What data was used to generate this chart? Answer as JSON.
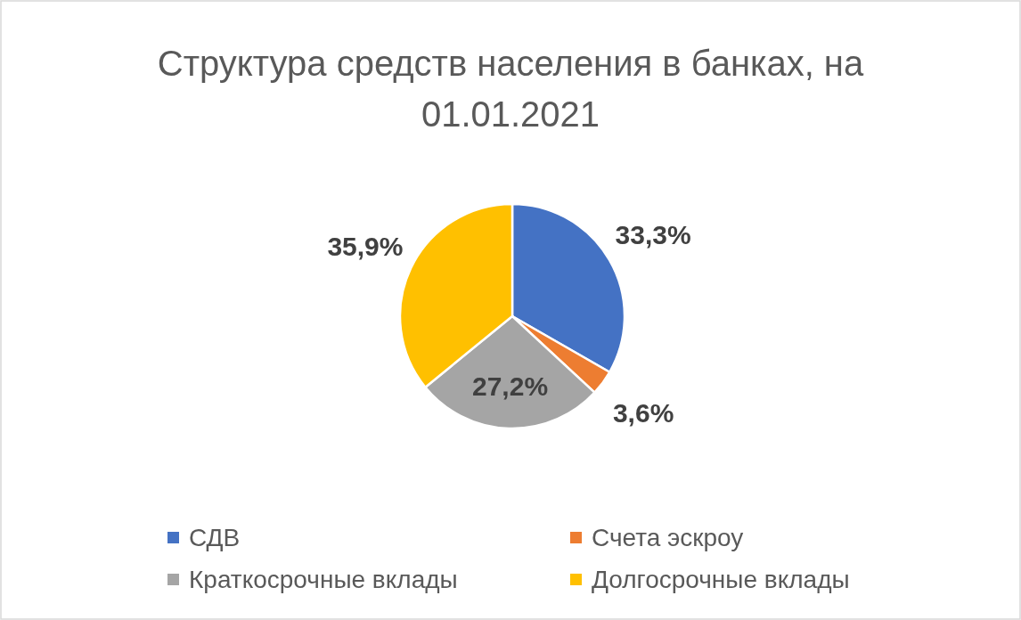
{
  "chart_data": {
    "type": "pie",
    "title": "Структура средств населения в банках, на 01.01.2021",
    "categories": [
      "СДВ",
      "Счета эскроу",
      "Краткосрочные вклады",
      "Долгосрочные вклады"
    ],
    "values": [
      33.3,
      3.6,
      27.2,
      35.9
    ],
    "colors": [
      "#4472c4",
      "#ed7d31",
      "#a5a5a5",
      "#ffc000"
    ],
    "value_labels": [
      "33,3%",
      "3,6%",
      "27,2%",
      "35,9%"
    ],
    "legend": "bottom"
  }
}
